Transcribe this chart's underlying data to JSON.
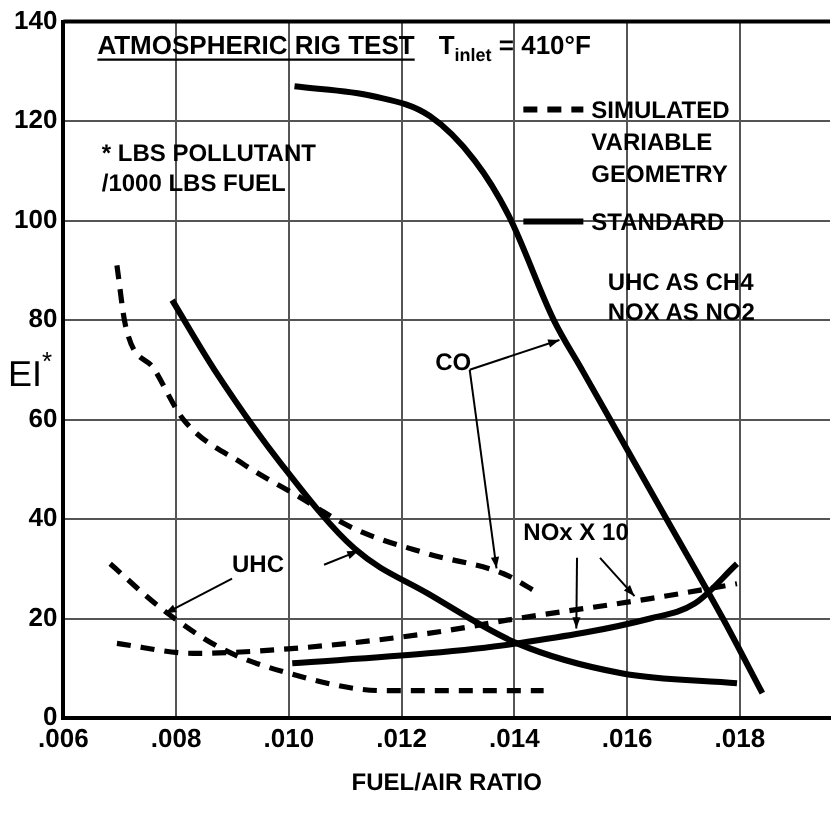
{
  "chart_data": {
    "type": "line",
    "title": "ATMOSPHERIC RIG TEST",
    "subtitle": "T$_{inlet}$ = 410°F",
    "xlabel": "FUEL/AIR RATIO",
    "ylabel": "EI$^{*}$",
    "xlim": [
      0.006,
      0.0196
    ],
    "xticks": [
      {
        "value": 0.006,
        "label": ".006"
      },
      {
        "value": 0.008,
        "label": ".008"
      },
      {
        "value": 0.01,
        "label": ".010"
      },
      {
        "value": 0.012,
        "label": ".012"
      },
      {
        "value": 0.014,
        "label": ".014"
      },
      {
        "value": 0.016,
        "label": ".016"
      },
      {
        "value": 0.018,
        "label": ".018"
      }
    ],
    "ylim": [
      0,
      140
    ],
    "yticks": [
      0,
      20,
      40,
      60,
      80,
      100,
      120,
      140
    ],
    "grid": true,
    "legend": "top right",
    "marker": "none",
    "annotations": [
      "* LBS POLLUTANT /1000 LBS FUEL",
      "UHC AS CH4 NOX AS NO2",
      {
        "text": "CO",
        "x": 0.0148,
        "y": 76
      },
      {
        "text": "UHC",
        "x": 0.0078,
        "y": 21
      },
      {
        "text": "NOx X 10",
        "x": 0.0151,
        "y": 18
      }
    ],
    "series": [
      {
        "name": "SIMULATED VARIABLE GEOMETRY",
        "color": "#000000",
        "line_style": "dashed",
        "x": [
          0.00695,
          0.0071,
          0.00762,
          0.00813,
          0.0092,
          0.0101,
          0.01117,
          0.01247,
          0.01381,
          0.01444
        ],
        "values": [
          91,
          79,
          70,
          60,
          51,
          45,
          38,
          33,
          29,
          25
        ]
      },
      {
        "name": "STANDARD",
        "color": "#000000",
        "line_style": "solid",
        "x": [
          0.0101,
          0.0115,
          0.0125,
          0.0133,
          0.0139,
          0.0147,
          0.0152,
          0.0157,
          0.0167,
          0.0177,
          0.0184
        ],
        "values": [
          127,
          125,
          121,
          112,
          101,
          80,
          70,
          60,
          40,
          20,
          5
        ]
      },
      {
        "color": "#000000",
        "line_style": "dashed",
        "x": [
          0.00683,
          0.00774,
          0.0088,
          0.01,
          0.01168,
          0.01452
        ],
        "values": [
          31,
          22,
          14,
          9,
          5.5,
          5.5
        ]
      },
      {
        "color": "#000000",
        "line_style": "solid",
        "x": [
          0.00793,
          0.00868,
          0.00987,
          0.01117,
          0.01247,
          0.01405,
          0.0159,
          0.01795
        ],
        "values": [
          84,
          70,
          51,
          34,
          25,
          15,
          9,
          7
        ]
      },
      {
        "color": "#000000",
        "line_style": "dashed",
        "x": [
          0.00695,
          0.0083,
          0.0101,
          0.01247,
          0.01405,
          0.01641,
          0.01795
        ],
        "values": [
          15,
          13,
          14,
          17,
          20,
          24,
          27
        ]
      },
      {
        "color": "#000000",
        "line_style": "solid",
        "x": [
          0.01006,
          0.01247,
          0.01405,
          0.01641,
          0.0172,
          0.01795
        ],
        "values": [
          11,
          13,
          15,
          20,
          23,
          31
        ]
      }
    ]
  }
}
